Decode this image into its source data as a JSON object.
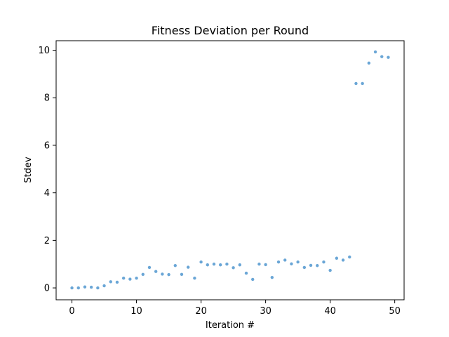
{
  "chart_data": {
    "type": "scatter",
    "title": "Fitness Deviation per Round",
    "xlabel": "Iteration #",
    "ylabel": "Stdev",
    "xlim": [
      -2.45,
      51.45
    ],
    "ylim": [
      -0.5,
      10.4
    ],
    "x_ticks": [
      0,
      10,
      20,
      30,
      40,
      50
    ],
    "y_ticks": [
      0,
      2,
      4,
      6,
      8,
      10
    ],
    "grid": false,
    "marker_color": "#6aa6d6",
    "series": [
      {
        "x": [
          0,
          1,
          2,
          3,
          4,
          5,
          6,
          7,
          8,
          9,
          10,
          11,
          12,
          13,
          14,
          15,
          16,
          17,
          18,
          19,
          20,
          21,
          22,
          23,
          24,
          25,
          26,
          27,
          28,
          29,
          30,
          31,
          32,
          33,
          34,
          35,
          36,
          37,
          38,
          39,
          40,
          41,
          42,
          43,
          44,
          45,
          46,
          47,
          48,
          49
        ],
        "values": [
          0.0,
          0.0,
          0.04,
          0.03,
          0.0,
          0.09,
          0.26,
          0.24,
          0.41,
          0.37,
          0.41,
          0.57,
          0.86,
          0.69,
          0.58,
          0.56,
          0.94,
          0.57,
          0.87,
          0.41,
          1.09,
          0.97,
          1.0,
          0.97,
          1.0,
          0.85,
          0.97,
          0.62,
          0.36,
          1.0,
          0.98,
          0.44,
          1.09,
          1.17,
          1.01,
          1.09,
          0.86,
          0.95,
          0.94,
          1.09,
          0.74,
          1.25,
          1.17,
          1.3,
          8.6,
          8.6,
          9.46,
          9.93,
          9.73,
          9.7
        ]
      }
    ]
  }
}
